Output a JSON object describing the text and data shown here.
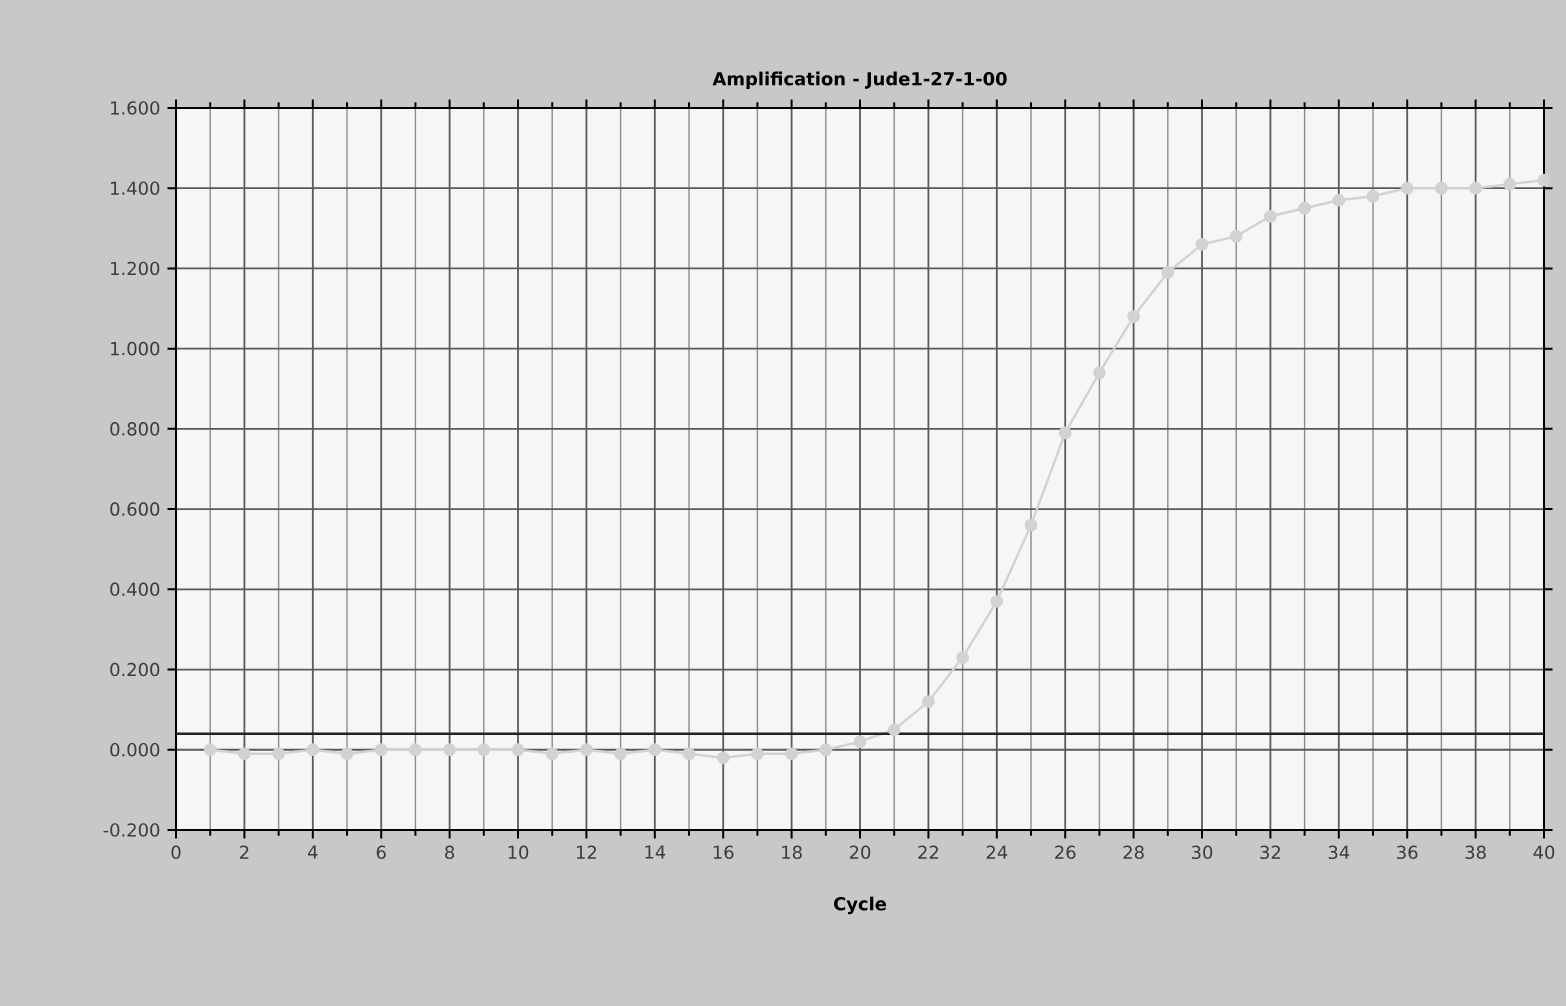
{
  "chart_data": {
    "type": "line",
    "title": "Amplification - Jude1-27-1-00",
    "xlabel": "Cycle",
    "x": [
      1,
      2,
      3,
      4,
      5,
      6,
      7,
      8,
      9,
      10,
      11,
      12,
      13,
      14,
      15,
      16,
      17,
      18,
      19,
      20,
      21,
      22,
      23,
      24,
      25,
      26,
      27,
      28,
      29,
      30,
      31,
      32,
      33,
      34,
      35,
      36,
      37,
      38,
      39,
      40
    ],
    "series": [
      {
        "color": "#d2d2d2",
        "values": [
          0.0,
          -0.01,
          -0.01,
          0.0,
          -0.01,
          0.0,
          0.0,
          0.0,
          0.0,
          0.0,
          -0.01,
          0.0,
          -0.01,
          0.0,
          -0.01,
          -0.02,
          -0.01,
          -0.01,
          0.0,
          0.02,
          0.05,
          0.12,
          0.23,
          0.37,
          0.56,
          0.79,
          0.94,
          1.08,
          1.19,
          1.26,
          1.28,
          1.33,
          1.35,
          1.37,
          1.38,
          1.4,
          1.4,
          1.4,
          1.41,
          1.42
        ]
      }
    ],
    "xlim": [
      0,
      40
    ],
    "ylim": [
      -0.2,
      1.6
    ],
    "xticks": [
      0,
      2,
      4,
      6,
      8,
      10,
      12,
      14,
      16,
      18,
      20,
      22,
      24,
      26,
      28,
      30,
      32,
      34,
      36,
      38,
      40
    ],
    "yticks": [
      {
        "value": -0.2,
        "label": "-0.200"
      },
      {
        "value": 0,
        "label": "0.000"
      },
      {
        "value": 0.2,
        "label": "0.200"
      },
      {
        "value": 0.4,
        "label": "0.400"
      },
      {
        "value": 0.6,
        "label": "0.600"
      },
      {
        "value": 0.8,
        "label": "0.800"
      },
      {
        "value": 1.0,
        "label": "1.000"
      },
      {
        "value": 1.2,
        "label": "1.200"
      },
      {
        "value": 1.4,
        "label": "1.400"
      },
      {
        "value": 1.6,
        "label": "1.600"
      }
    ],
    "ref_lines": [
      {
        "axis": "y",
        "value": 0.04,
        "color": "#222222"
      }
    ],
    "grid": true,
    "marker": "circle",
    "line_style": "solid"
  }
}
